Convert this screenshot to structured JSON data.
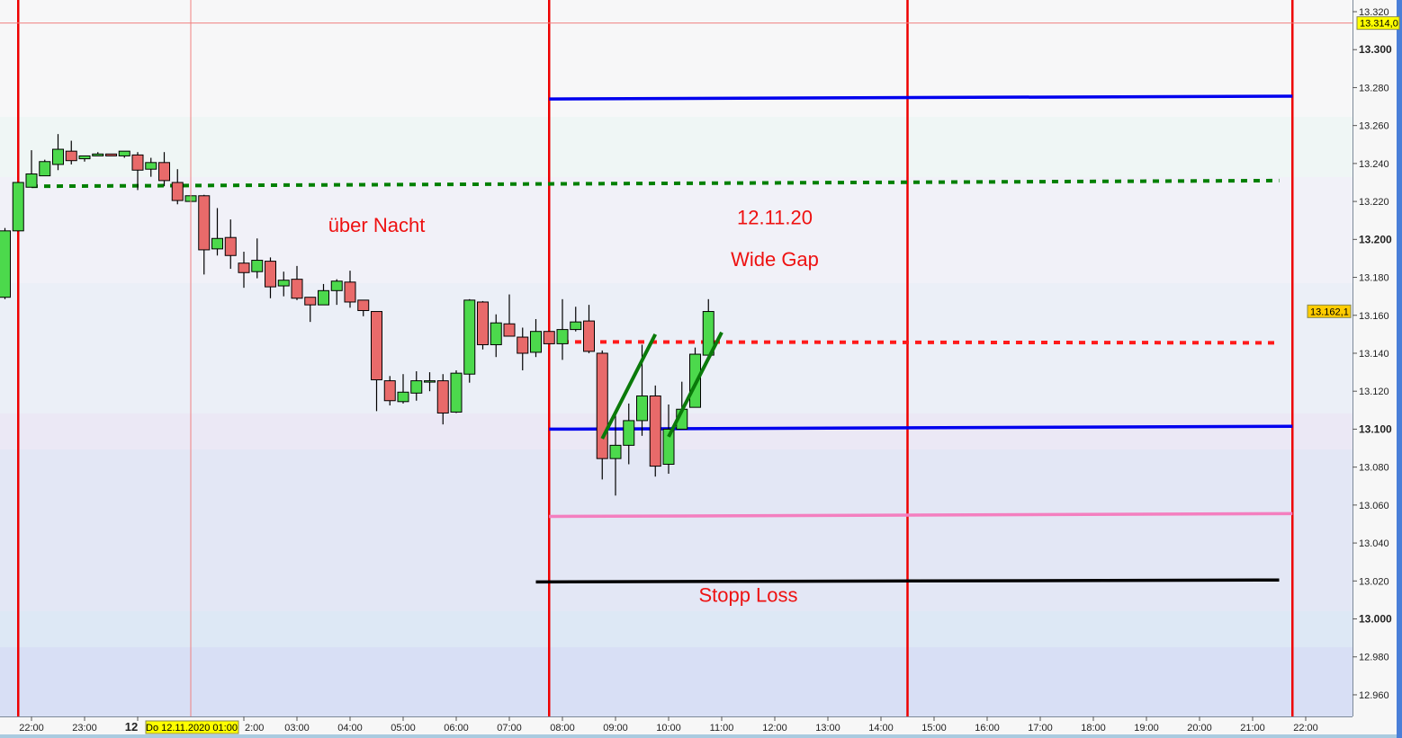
{
  "chart_data": {
    "type": "candlestick",
    "interval": "15min",
    "ylim": [
      12.95,
      13.325
    ],
    "y_ticks": [
      "13.320",
      "13.300",
      "13.280",
      "13.260",
      "13.240",
      "13.220",
      "13.200",
      "13.180",
      "13.160",
      "13.140",
      "13.120",
      "13.100",
      "13.080",
      "13.060",
      "13.040",
      "13.020",
      "13.000",
      "12.980",
      "12.960"
    ],
    "y_ticks_bold": [
      "13.300",
      "13.200",
      "13.100",
      "13.000"
    ],
    "x_ticks": [
      {
        "t": "2020-11-11 22:00",
        "label": "22:00"
      },
      {
        "t": "2020-11-11 23:00",
        "label": "23:00"
      },
      {
        "t": "2020-11-12 00:00",
        "label": "12",
        "bold": true
      },
      {
        "t": "2020-11-12 02:00",
        "label": "2:00"
      },
      {
        "t": "2020-11-12 03:00",
        "label": "03:00"
      },
      {
        "t": "2020-11-12 04:00",
        "label": "04:00"
      },
      {
        "t": "2020-11-12 05:00",
        "label": "05:00"
      },
      {
        "t": "2020-11-12 06:00",
        "label": "06:00"
      },
      {
        "t": "2020-11-12 07:00",
        "label": "07:00"
      },
      {
        "t": "2020-11-12 08:00",
        "label": "08:00"
      },
      {
        "t": "2020-11-12 09:00",
        "label": "09:00"
      },
      {
        "t": "2020-11-12 10:00",
        "label": "10:00"
      },
      {
        "t": "2020-11-12 11:00",
        "label": "11:00"
      },
      {
        "t": "2020-11-12 12:00",
        "label": "12:00"
      },
      {
        "t": "2020-11-12 13:00",
        "label": "13:00"
      },
      {
        "t": "2020-11-12 14:00",
        "label": "14:00"
      },
      {
        "t": "2020-11-12 15:00",
        "label": "15:00"
      },
      {
        "t": "2020-11-12 16:00",
        "label": "16:00"
      },
      {
        "t": "2020-11-12 17:00",
        "label": "17:00"
      },
      {
        "t": "2020-11-12 18:00",
        "label": "18:00"
      },
      {
        "t": "2020-11-12 19:00",
        "label": "19:00"
      },
      {
        "t": "2020-11-12 20:00",
        "label": "20:00"
      },
      {
        "t": "2020-11-12 21:00",
        "label": "21:00"
      },
      {
        "t": "2020-11-12 22:00",
        "label": "22:00"
      }
    ],
    "candles_columns": [
      "time",
      "open",
      "high",
      "low",
      "close"
    ],
    "candles": [
      [
        "2020-11-11 21:30",
        13169.5,
        13206,
        13168.5,
        13204.5
      ],
      [
        "2020-11-11 21:45",
        13204.5,
        13230,
        13204.5,
        13230
      ],
      [
        "2020-11-11 22:00",
        13227.5,
        13247,
        13227.5,
        13234.5
      ],
      [
        "2020-11-11 22:15",
        13233.5,
        13242,
        13233.5,
        13241
      ],
      [
        "2020-11-11 22:30",
        13239.5,
        13255.5,
        13236.5,
        13247.5
      ],
      [
        "2020-11-11 22:45",
        13246.5,
        13252,
        13239.5,
        13241.5
      ],
      [
        "2020-11-11 23:00",
        13242.5,
        13244,
        13241,
        13244
      ],
      [
        "2020-11-11 23:15",
        13244,
        13246,
        13244,
        13245
      ],
      [
        "2020-11-11 23:30",
        13245,
        13245,
        13244,
        13244
      ],
      [
        "2020-11-11 23:45",
        13244,
        13246.5,
        13243,
        13246.5
      ],
      [
        "2020-11-12 00:00",
        13244.5,
        13246,
        13226,
        13236.5
      ],
      [
        "2020-11-12 00:15",
        13237,
        13243,
        13233,
        13240.5
      ],
      [
        "2020-11-12 00:30",
        13240.5,
        13246,
        13228,
        13231
      ],
      [
        "2020-11-12 00:45",
        13230,
        13237,
        13218.5,
        13220.5
      ],
      [
        "2020-11-12 01:00",
        13220,
        13223,
        13220,
        13223
      ],
      [
        "2020-11-12 01:15",
        13223,
        13223.5,
        13181.5,
        13194.5
      ],
      [
        "2020-11-12 01:30",
        13195,
        13216.5,
        13191.5,
        13200.5
      ],
      [
        "2020-11-12 01:45",
        13201,
        13210.5,
        13184.5,
        13191.5
      ],
      [
        "2020-11-12 02:00",
        13187.5,
        13193.5,
        13174.5,
        13182.5
      ],
      [
        "2020-11-12 02:15",
        13183,
        13200.5,
        13179.5,
        13189
      ],
      [
        "2020-11-12 02:30",
        13188.5,
        13190.5,
        13169,
        13175
      ],
      [
        "2020-11-12 02:45",
        13175.5,
        13183,
        13170,
        13178.5
      ],
      [
        "2020-11-12 03:00",
        13179,
        13186,
        13168,
        13169
      ],
      [
        "2020-11-12 03:15",
        13169.5,
        13169.5,
        13156.5,
        13165.5
      ],
      [
        "2020-11-12 03:30",
        13165.5,
        13176.5,
        13165.5,
        13173
      ],
      [
        "2020-11-12 03:45",
        13173,
        13179,
        13165.5,
        13178
      ],
      [
        "2020-11-12 04:00",
        13177.5,
        13183.5,
        13164,
        13167
      ],
      [
        "2020-11-12 04:15",
        13168,
        13168,
        13159.5,
        13162.5
      ],
      [
        "2020-11-12 04:30",
        13162,
        13162,
        13109.5,
        13126
      ],
      [
        "2020-11-12 04:45",
        13125.5,
        13128,
        13112.5,
        13115
      ],
      [
        "2020-11-12 05:00",
        13114.5,
        13129,
        13113.5,
        13119.5
      ],
      [
        "2020-11-12 05:15",
        13119,
        13130.5,
        13115,
        13125.5
      ],
      [
        "2020-11-12 05:30",
        13125.5,
        13130,
        13120,
        13125.5
      ],
      [
        "2020-11-12 05:45",
        13125.5,
        13129,
        13102.5,
        13108.5
      ],
      [
        "2020-11-12 06:00",
        13109,
        13131,
        13108.5,
        13129.5
      ],
      [
        "2020-11-12 06:15",
        13129,
        13168.5,
        13124.5,
        13168
      ],
      [
        "2020-11-12 06:30",
        13167,
        13167.5,
        13142,
        13144.5
      ],
      [
        "2020-11-12 06:45",
        13144.5,
        13160.5,
        13138,
        13156
      ],
      [
        "2020-11-12 07:00",
        13155.5,
        13171,
        13149,
        13149
      ],
      [
        "2020-11-12 07:15",
        13148.5,
        13153.5,
        13131,
        13140
      ],
      [
        "2020-11-12 07:30",
        13140.5,
        13158,
        13138,
        13151.5
      ],
      [
        "2020-11-12 07:45",
        13151.5,
        13151.5,
        13145,
        13145
      ],
      [
        "2020-11-12 08:00",
        13145,
        13168.5,
        13136.5,
        13152.5
      ],
      [
        "2020-11-12 08:15",
        13152.5,
        13164.5,
        13151.5,
        13156.5
      ],
      [
        "2020-11-12 08:30",
        13157,
        13165.5,
        13140,
        13141
      ],
      [
        "2020-11-12 08:45",
        13140,
        13141.5,
        13073.5,
        13084.5
      ],
      [
        "2020-11-12 09:00",
        13084.5,
        13110,
        13065,
        13091.5
      ],
      [
        "2020-11-12 09:15",
        13091.5,
        13113.5,
        13081.5,
        13104.5
      ],
      [
        "2020-11-12 09:30",
        13104.5,
        13144.5,
        13096.5,
        13117.5
      ],
      [
        "2020-11-12 09:45",
        13117.5,
        13123,
        13075,
        13080.5
      ],
      [
        "2020-11-12 10:00",
        13081.5,
        13113,
        13076.5,
        13100
      ],
      [
        "2020-11-12 10:15",
        13100,
        13125,
        13100,
        13110.5
      ],
      [
        "2020-11-12 10:30",
        13111.5,
        13143,
        13111.5,
        13139.5
      ],
      [
        "2020-11-12 10:45",
        13139,
        13168.5,
        13139,
        13162
      ]
    ],
    "vertical_lines": [
      {
        "t": "2020-11-11 21:45",
        "color": "#ee0000"
      },
      {
        "t": "2020-11-12 07:45",
        "color": "#ee0000"
      },
      {
        "t": "2020-11-12 14:30",
        "color": "#ee0000"
      },
      {
        "t": "2020-11-12 21:45",
        "color": "#ee0000"
      }
    ],
    "horizontal_lines": [
      {
        "t1": "2020-11-12 07:45",
        "p1": 13274,
        "t2": "2020-11-12 21:45",
        "p2": 13275.5,
        "color": "#0000ee",
        "style": "solid"
      },
      {
        "t1": "2020-11-11 22:00",
        "p1": 13228,
        "t2": "2020-11-12 21:30",
        "p2": 13231,
        "color": "#008000",
        "style": "dotted"
      },
      {
        "t1": "2020-11-12 08:00",
        "p1": 13146,
        "t2": "2020-11-12 21:30",
        "p2": 13145.5,
        "color": "#ff1a1a",
        "style": "dotted"
      },
      {
        "t1": "2020-11-12 07:45",
        "p1": 13100,
        "t2": "2020-11-12 21:45",
        "p2": 13101.5,
        "color": "#0000ee",
        "style": "solid"
      },
      {
        "t1": "2020-11-12 07:45",
        "p1": 13054,
        "t2": "2020-11-12 21:45",
        "p2": 13055.5,
        "color": "#f47fbf",
        "style": "solid"
      },
      {
        "t1": "2020-11-12 07:30",
        "p1": 13019.5,
        "t2": "2020-11-12 21:30",
        "p2": 13020.5,
        "color": "#000000",
        "style": "solid"
      }
    ],
    "trend_lines": [
      {
        "t1": "2020-11-12 08:45",
        "p1": 13095,
        "t2": "2020-11-12 09:45",
        "p2": 13150,
        "color": "#0a7a0a"
      },
      {
        "t1": "2020-11-12 10:00",
        "p1": 13096,
        "t2": "2020-11-12 11:00",
        "p2": 13151,
        "color": "#0a7a0a"
      }
    ],
    "annotations": [
      {
        "text": "über Nacht",
        "t": "2020-11-12 04:30",
        "p": 13204
      },
      {
        "text": "12.11.20",
        "t": "2020-11-12 12:00",
        "p": 13208
      },
      {
        "text": "Wide Gap",
        "t": "2020-11-12 12:00",
        "p": 13186
      },
      {
        "text": "Stopp Loss",
        "t": "2020-11-12 11:30",
        "p": 13009
      }
    ],
    "crosshair": {
      "t": "2020-11-12 01:00",
      "p": 13314.0,
      "price_label": "13.314,0",
      "time_label": "Do 12.11.2020 01:00"
    },
    "last_price_label": "13.162,1",
    "colors": {
      "up": "#4cd94c",
      "down": "#e86a6a",
      "crosshair": "#f08080",
      "marker": "#ffff00",
      "last_marker": "#ffcc00"
    }
  }
}
